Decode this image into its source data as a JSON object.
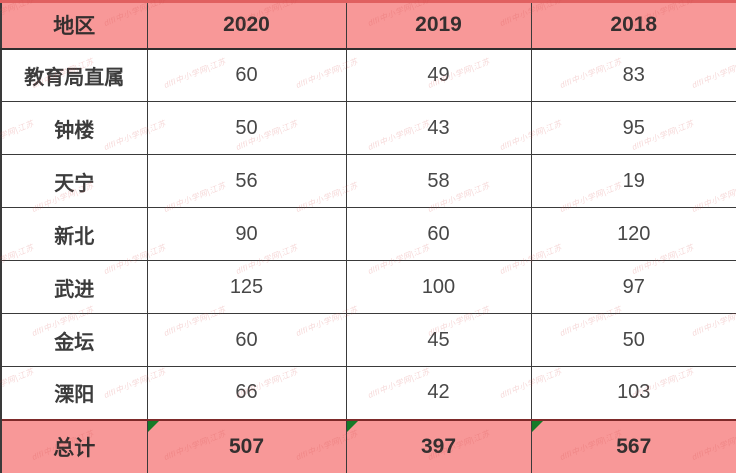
{
  "table": {
    "columns": [
      "地区",
      "2020",
      "2019",
      "2018"
    ],
    "rows": [
      {
        "region": "教育局直属",
        "values": [
          "60",
          "49",
          "83"
        ]
      },
      {
        "region": "钟楼",
        "values": [
          "50",
          "43",
          "95"
        ]
      },
      {
        "region": "天宁",
        "values": [
          "56",
          "58",
          "19"
        ]
      },
      {
        "region": "新北",
        "values": [
          "90",
          "60",
          "120"
        ]
      },
      {
        "region": "武进",
        "values": [
          "125",
          "100",
          "97"
        ]
      },
      {
        "region": "金坛",
        "values": [
          "60",
          "45",
          "50"
        ]
      },
      {
        "region": "溧阳",
        "values": [
          "66",
          "42",
          "103"
        ]
      }
    ],
    "footer": {
      "label": "总计",
      "values": [
        "507",
        "397",
        "567"
      ]
    }
  },
  "watermark": {
    "text": "dlfl中小学网|江苏"
  },
  "colors": {
    "header_bg": "#f89898",
    "footer_bg": "#f89898",
    "outer_accent_border": "#e06060",
    "cell_border": "#3a3a3a",
    "text": "#474747",
    "error_triangle_green": "#157a28",
    "watermark_red": "#d64c4c"
  },
  "chart_data": {
    "type": "table",
    "title": "",
    "categories": [
      "教育局直属",
      "钟楼",
      "天宁",
      "新北",
      "武进",
      "金坛",
      "溧阳"
    ],
    "series": [
      {
        "name": "2020",
        "values": [
          60,
          50,
          56,
          90,
          125,
          60,
          66
        ],
        "total": 507
      },
      {
        "name": "2019",
        "values": [
          49,
          43,
          58,
          60,
          100,
          45,
          42
        ],
        "total": 397
      },
      {
        "name": "2018",
        "values": [
          83,
          95,
          19,
          120,
          97,
          50,
          103
        ],
        "total": 567
      }
    ],
    "row_header_label": "地区",
    "total_row_label": "总计",
    "layout_hints": {
      "header_fill": "pink",
      "total_row_fill": "pink",
      "grid": "on",
      "error_indicator_triangles_on_total_cells": true
    }
  }
}
